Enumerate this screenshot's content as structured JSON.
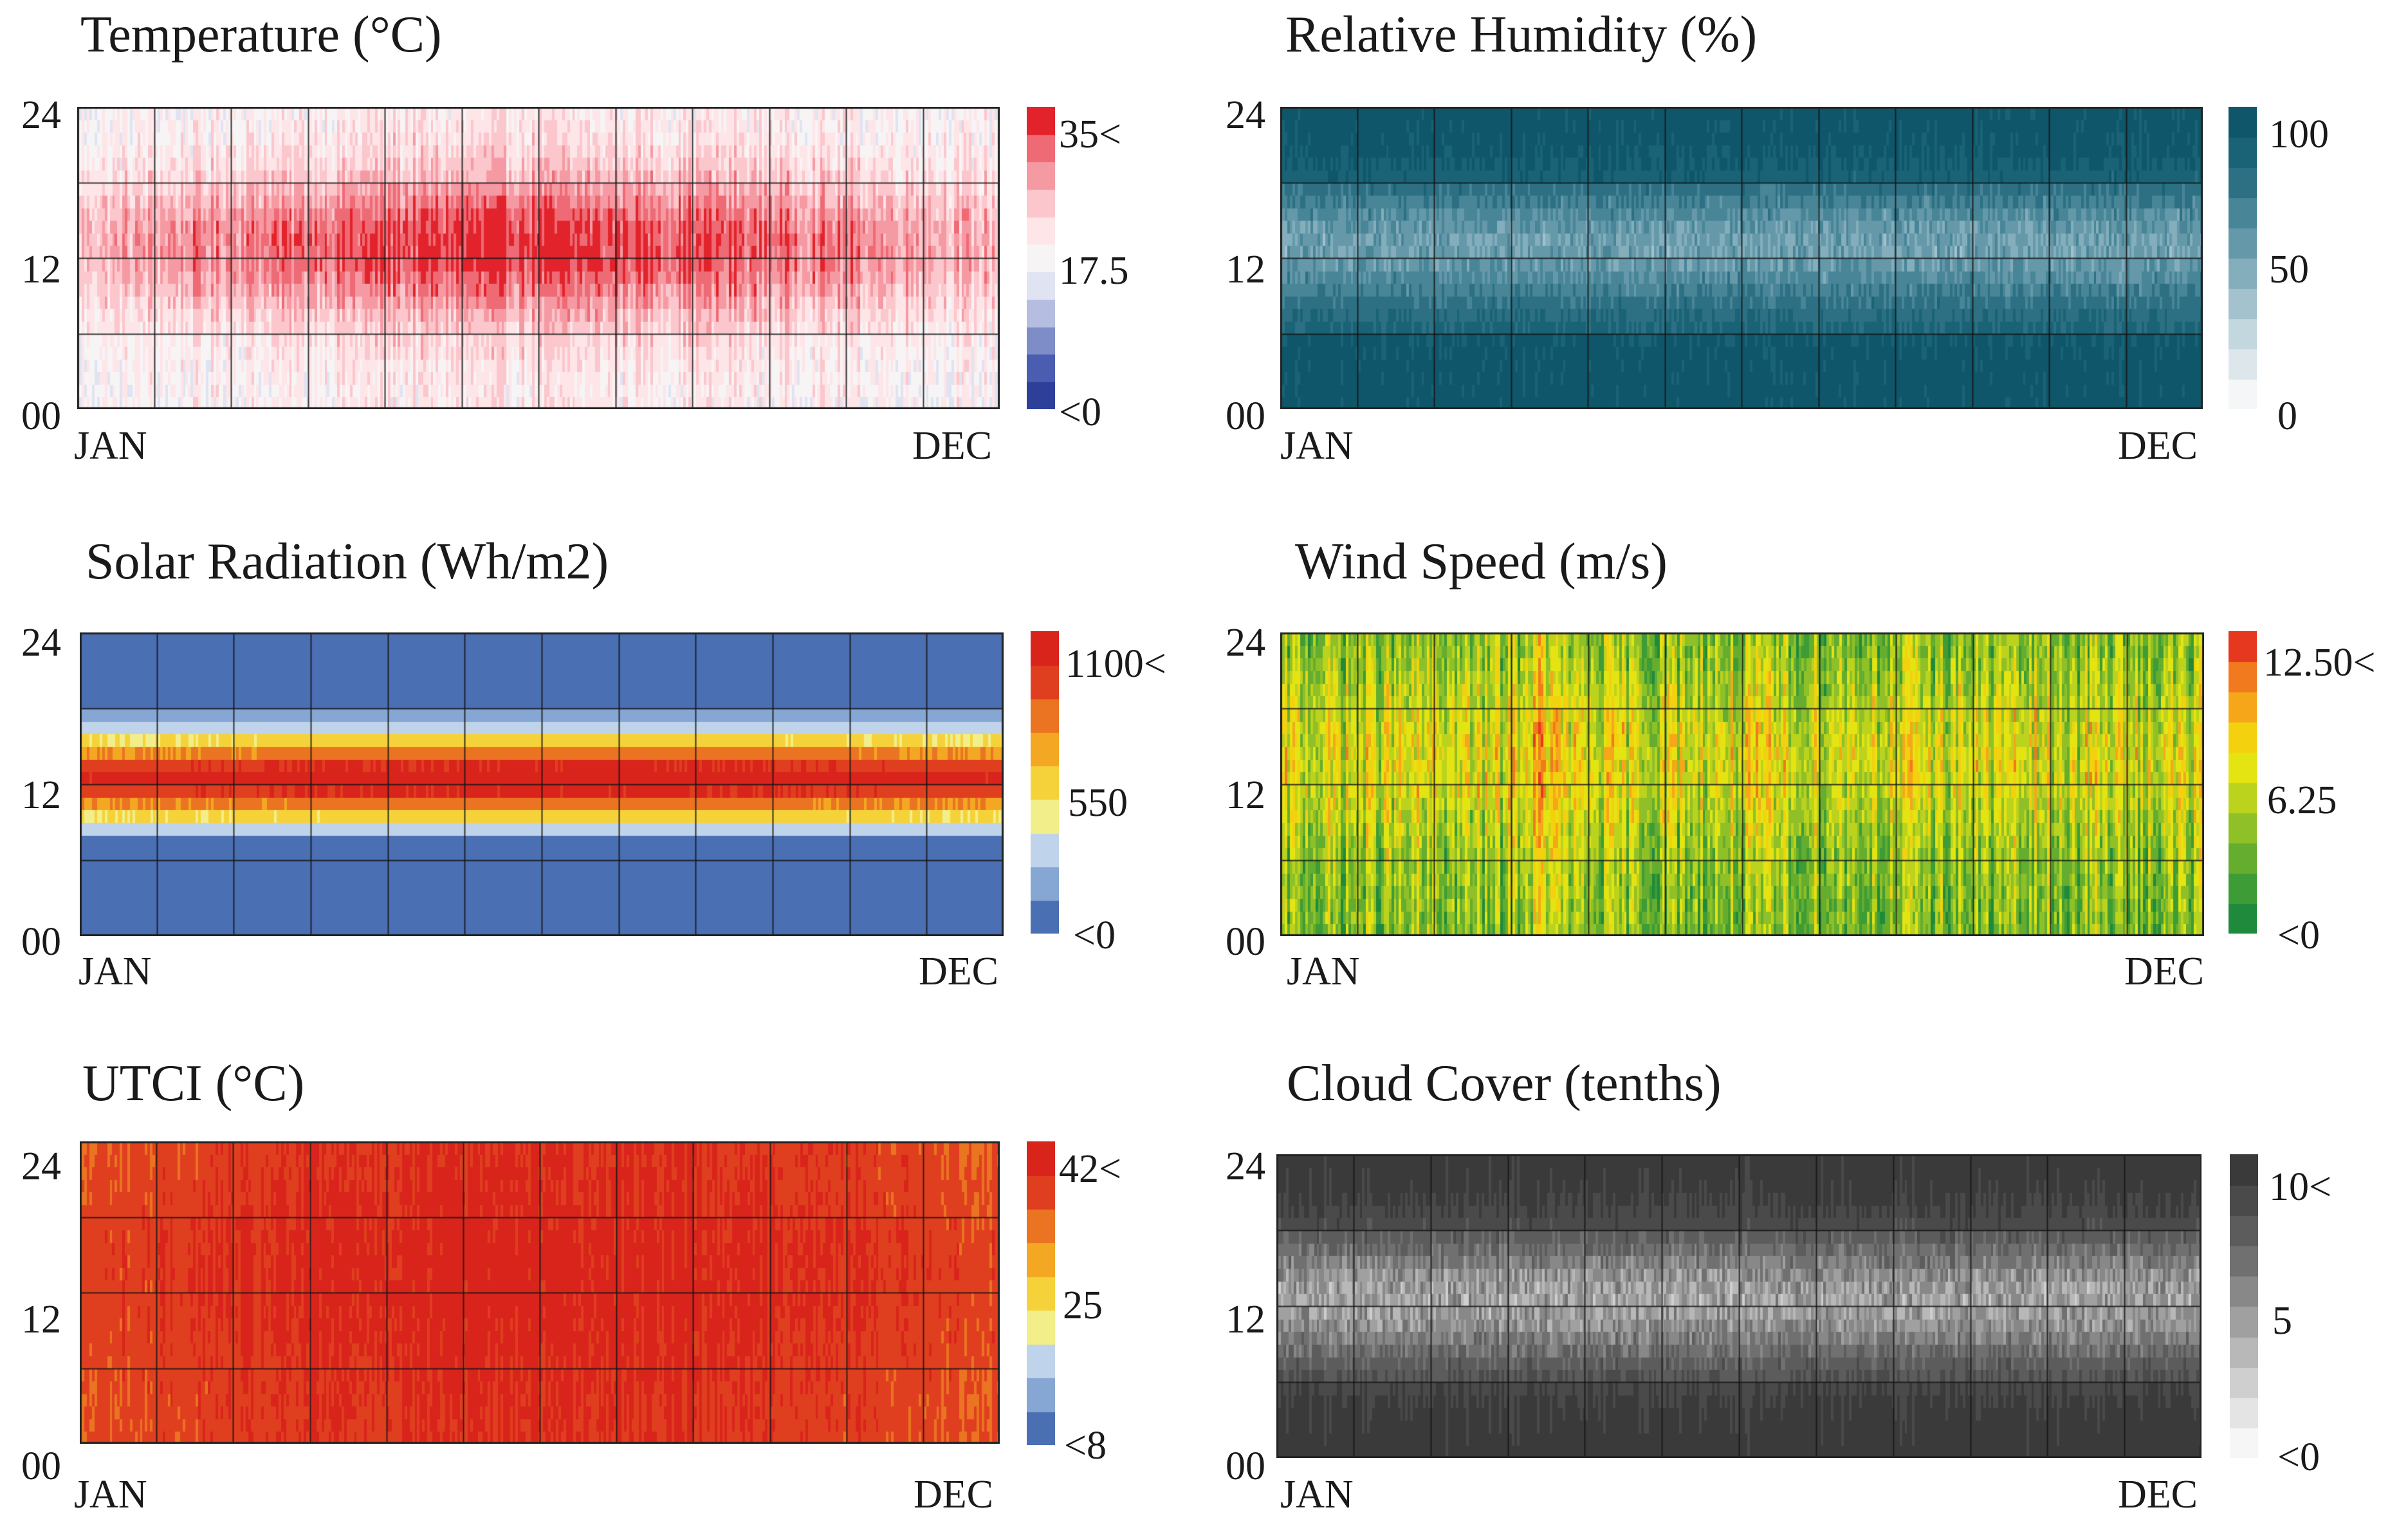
{
  "chart_data": [
    {
      "type": "heatmap",
      "title": "Temperature (°C)",
      "x_range": [
        "JAN",
        "DEC"
      ],
      "y_ticks": [
        "24",
        "12",
        "00"
      ],
      "colorbar": {
        "colors": [
          "#2d3f99",
          "#4a5db0",
          "#7e8cc7",
          "#b5bde0",
          "#e0e3f1",
          "#f7f4f6",
          "#fde5e8",
          "#fbc6cc",
          "#f59aa3",
          "#ee6a74",
          "#e2232b"
        ],
        "labels": [
          "35<",
          "17.5",
          "<0"
        ]
      },
      "pattern": "warm, peaking around 12-16 h and mid-year"
    },
    {
      "type": "heatmap",
      "title": "Relative Humidity (%)",
      "x_range": [
        "JAN",
        "DEC"
      ],
      "y_ticks": [
        "24",
        "12",
        "00"
      ],
      "colorbar": {
        "colors": [
          "#f4f6f7",
          "#dde7eb",
          "#c3d7de",
          "#a3c2cd",
          "#84aebc",
          "#6599aa",
          "#478597",
          "#2d7084",
          "#1a6276",
          "#0f566a"
        ],
        "labels": [
          "100",
          "50",
          "0"
        ]
      },
      "pattern": "high at night, lower around midday"
    },
    {
      "type": "heatmap",
      "title": "Solar Radiation (Wh/m2)",
      "x_range": [
        "JAN",
        "DEC"
      ],
      "y_ticks": [
        "24",
        "12",
        "00"
      ],
      "colorbar": {
        "colors": [
          "#4a6fb3",
          "#86a6d4",
          "#bfd3ea",
          "#f2ee8a",
          "#f6d23a",
          "#f3a722",
          "#ea7421",
          "#e03f1f",
          "#d9241c"
        ],
        "labels": [
          "1100<",
          "550",
          "<0"
        ]
      },
      "pattern": "zero outside daylight, peak near noon"
    },
    {
      "type": "heatmap",
      "title": "Wind Speed (m/s)",
      "x_range": [
        "JAN",
        "DEC"
      ],
      "y_ticks": [
        "24",
        "12",
        "00"
      ],
      "colorbar": {
        "colors": [
          "#1f8a3b",
          "#3d9c35",
          "#64ad2f",
          "#8fc028",
          "#bcd31e",
          "#e4e412",
          "#f3d10f",
          "#f5a719",
          "#f07a1d",
          "#e5381f"
        ],
        "labels": [
          "12.50<",
          "6.25",
          "<0"
        ]
      },
      "pattern": "higher in afternoon, spring peak"
    },
    {
      "type": "heatmap",
      "title": "UTCI (°C)",
      "x_range": [
        "JAN",
        "DEC"
      ],
      "y_ticks": [
        "24",
        "12",
        "00"
      ],
      "colorbar": {
        "colors": [
          "#4a6fb3",
          "#86a6d4",
          "#bfd3ea",
          "#f2ee8a",
          "#f6d23a",
          "#f3a722",
          "#ea7421",
          "#e03f1f",
          "#d9241c"
        ],
        "labels": [
          "42<",
          "25",
          "<8"
        ]
      },
      "pattern": "hot all year, hottest mid-year"
    },
    {
      "type": "heatmap",
      "title": "Cloud Cover (tenths)",
      "x_range": [
        "JAN",
        "DEC"
      ],
      "y_ticks": [
        "24",
        "12",
        "00"
      ],
      "colorbar": {
        "colors": [
          "#f6f6f6",
          "#e4e4e4",
          "#cfcfcf",
          "#b8b8b8",
          "#a0a0a0",
          "#888888",
          "#707070",
          "#5c5c5c",
          "#4a4a4a",
          "#3a3a3a"
        ],
        "labels": [
          "10<",
          "5",
          "<0"
        ]
      },
      "pattern": "dark at night, lighter around midday"
    }
  ]
}
